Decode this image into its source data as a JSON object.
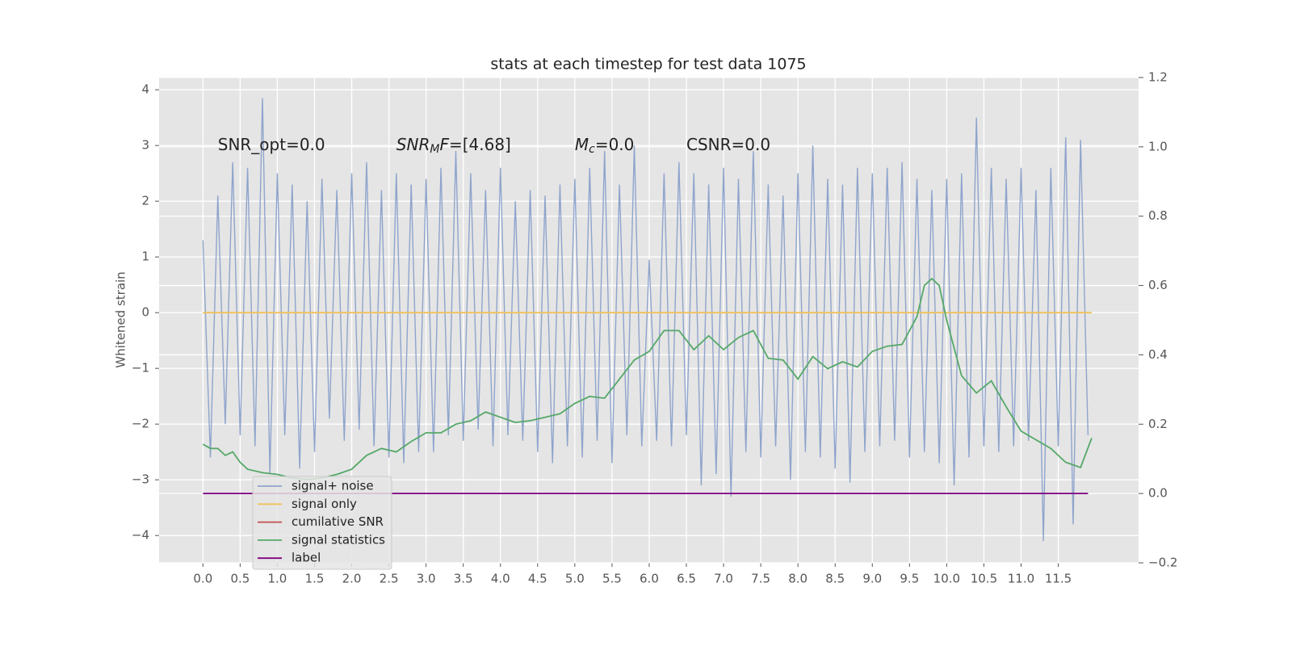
{
  "chart_data": {
    "type": "line",
    "title": "stats at each timestep for test data 1075",
    "y_label": "Whitened strain",
    "xlim": [
      -0.59,
      12.58
    ],
    "ylim": [
      -4.49,
      4.22
    ],
    "y2lim": [
      -0.2,
      1.2
    ],
    "grid": true,
    "legend": "lower left",
    "xticks": [
      {
        "value": 0,
        "label": "0.0"
      },
      {
        "value": 0.5,
        "label": "0.5"
      },
      {
        "value": 1,
        "label": "1.0"
      },
      {
        "value": 1.5,
        "label": "1.5"
      },
      {
        "value": 2,
        "label": "2.0"
      },
      {
        "value": 2.5,
        "label": "2.5"
      },
      {
        "value": 3,
        "label": "3.0"
      },
      {
        "value": 3.5,
        "label": "3.5"
      },
      {
        "value": 4,
        "label": "4.0"
      },
      {
        "value": 4.5,
        "label": "4.5"
      },
      {
        "value": 5,
        "label": "5.0"
      },
      {
        "value": 5.5,
        "label": "5.5"
      },
      {
        "value": 6,
        "label": "6.0"
      },
      {
        "value": 6.5,
        "label": "6.5"
      },
      {
        "value": 7,
        "label": "7.0"
      },
      {
        "value": 7.5,
        "label": "7.5"
      },
      {
        "value": 8,
        "label": "8.0"
      },
      {
        "value": 8.5,
        "label": "8.5"
      },
      {
        "value": 9,
        "label": "9.0"
      },
      {
        "value": 9.5,
        "label": "9.5"
      },
      {
        "value": 10,
        "label": "10.0"
      },
      {
        "value": 10.5,
        "label": "10.5"
      },
      {
        "value": 11,
        "label": "11.0"
      },
      {
        "value": 11.5,
        "label": "11.5"
      }
    ],
    "yticks": [
      {
        "value": -4,
        "label": "−4"
      },
      {
        "value": -3,
        "label": "−3"
      },
      {
        "value": -2,
        "label": "−2"
      },
      {
        "value": -1,
        "label": "−1"
      },
      0,
      1,
      2,
      3,
      4
    ],
    "y2ticks": [
      {
        "value": -0.2,
        "label": "−0.2"
      },
      {
        "value": 0,
        "label": "0.0"
      },
      0.2,
      0.4,
      0.6,
      0.8,
      {
        "value": 1,
        "label": "1.0"
      },
      1.2
    ],
    "annotations": [
      {
        "x": 0.2,
        "y": 3.0,
        "parts": [
          {
            "text": "SNR_opt=0.0",
            "style": "normal"
          }
        ]
      },
      {
        "x": 2.6,
        "y": 3.0,
        "parts": [
          {
            "text": "SNR",
            "style": "italic"
          },
          {
            "text": "M",
            "style": "italic-sub"
          },
          {
            "text": "F",
            "style": "italic"
          },
          {
            "text": "=[4.68]",
            "style": "normal"
          }
        ]
      },
      {
        "x": 5.0,
        "y": 3.0,
        "parts": [
          {
            "text": "M",
            "style": "italic"
          },
          {
            "text": "c",
            "style": "italic-sub"
          },
          {
            "text": "=0.0",
            "style": "normal"
          }
        ]
      },
      {
        "x": 6.5,
        "y": 3.0,
        "parts": [
          {
            "text": "CSNR=0.0",
            "style": "normal"
          }
        ]
      }
    ],
    "series": [
      {
        "name": "signal+ noise",
        "color": "#8fa4cc",
        "axis": "y",
        "x": [
          0,
          0.1,
          0.2,
          0.3,
          0.4,
          0.5,
          0.6,
          0.7,
          0.8,
          0.9,
          1,
          1.1,
          1.2,
          1.3,
          1.4,
          1.5,
          1.6,
          1.7,
          1.8,
          1.9,
          2,
          2.1,
          2.2,
          2.3,
          2.4,
          2.5,
          2.6,
          2.7,
          2.8,
          2.9,
          3,
          3.1,
          3.2,
          3.3,
          3.4,
          3.5,
          3.6,
          3.7,
          3.8,
          3.9,
          4,
          4.1,
          4.2,
          4.3,
          4.4,
          4.5,
          4.6,
          4.7,
          4.8,
          4.9,
          5,
          5.1,
          5.2,
          5.3,
          5.4,
          5.5,
          5.6,
          5.7,
          5.8,
          5.9,
          6,
          6.1,
          6.2,
          6.3,
          6.4,
          6.5,
          6.6,
          6.7,
          6.8,
          6.9,
          7,
          7.1,
          7.2,
          7.3,
          7.4,
          7.5,
          7.6,
          7.7,
          7.8,
          7.9,
          8,
          8.1,
          8.2,
          8.3,
          8.4,
          8.5,
          8.6,
          8.7,
          8.8,
          8.9,
          9,
          9.1,
          9.2,
          9.3,
          9.4,
          9.5,
          9.6,
          9.7,
          9.8,
          9.9,
          10,
          10.1,
          10.2,
          10.3,
          10.4,
          10.5,
          10.6,
          10.7,
          10.8,
          10.9,
          11,
          11.1,
          11.2,
          11.3,
          11.4,
          11.5,
          11.6,
          11.7,
          11.8,
          11.9
        ],
        "values": [
          1.3,
          -2.6,
          2.1,
          -2.0,
          2.7,
          -2.2,
          2.6,
          -2.4,
          3.85,
          -2.9,
          2.5,
          -2.2,
          2.3,
          -2.8,
          2.0,
          -2.5,
          2.4,
          -1.9,
          2.2,
          -2.3,
          2.5,
          -2.1,
          2.7,
          -2.4,
          2.2,
          -2.6,
          2.5,
          -2.7,
          2.3,
          -2.5,
          2.4,
          -2.5,
          2.6,
          -2.2,
          2.9,
          -2.3,
          2.5,
          -2.1,
          2.2,
          -2.4,
          2.6,
          -2.2,
          2.0,
          -2.3,
          2.2,
          -2.5,
          2.1,
          -2.7,
          2.3,
          -2.4,
          2.4,
          -2.6,
          2.6,
          -2.3,
          2.9,
          -2.7,
          2.3,
          -2.2,
          3.0,
          -2.4,
          0.95,
          -2.3,
          2.5,
          -2.4,
          2.7,
          -2.2,
          2.5,
          -3.1,
          2.3,
          -2.9,
          2.6,
          -3.3,
          2.4,
          -2.5,
          2.9,
          -2.6,
          2.3,
          -2.4,
          2.1,
          -3.0,
          2.5,
          -2.5,
          3.0,
          -2.6,
          2.4,
          -2.8,
          2.3,
          -3.05,
          2.6,
          -2.5,
          2.5,
          -2.4,
          2.6,
          -2.3,
          2.7,
          -2.6,
          2.4,
          -2.5,
          2.2,
          -2.7,
          2.4,
          -3.1,
          2.5,
          -2.6,
          3.5,
          -2.4,
          2.6,
          -2.5,
          2.4,
          -2.4,
          2.6,
          -2.3,
          2.2,
          -4.1,
          2.6,
          -2.4,
          3.15,
          -3.8,
          3.1,
          -2.2
        ]
      },
      {
        "name": "signal only",
        "color": "#f0c25a",
        "axis": "y",
        "x": [
          0,
          11.95
        ],
        "values": [
          0,
          0
        ]
      },
      {
        "name": "cumilative SNR",
        "color": "#c44e52",
        "axis": "y2"
      },
      {
        "name": "signal statistics",
        "color": "#55a868",
        "axis": "y2",
        "x": [
          0,
          0.1,
          0.2,
          0.3,
          0.4,
          0.5,
          0.6,
          0.8,
          1,
          1.2,
          1.4,
          1.6,
          1.8,
          2,
          2.2,
          2.4,
          2.6,
          2.8,
          3,
          3.2,
          3.4,
          3.6,
          3.8,
          4,
          4.2,
          4.4,
          4.6,
          4.8,
          5,
          5.2,
          5.4,
          5.6,
          5.8,
          6,
          6.2,
          6.4,
          6.6,
          6.8,
          7,
          7.2,
          7.4,
          7.6,
          7.8,
          8,
          8.2,
          8.4,
          8.6,
          8.8,
          9,
          9.2,
          9.4,
          9.6,
          9.7,
          9.8,
          9.9,
          10,
          10.2,
          10.4,
          10.6,
          10.8,
          11,
          11.2,
          11.4,
          11.6,
          11.8,
          11.95
        ],
        "values": [
          0.142,
          0.13,
          0.13,
          0.11,
          0.12,
          0.09,
          0.07,
          0.06,
          0.055,
          0.045,
          0.04,
          0.045,
          0.055,
          0.07,
          0.11,
          0.13,
          0.12,
          0.15,
          0.175,
          0.175,
          0.2,
          0.21,
          0.235,
          0.22,
          0.205,
          0.21,
          0.22,
          0.23,
          0.26,
          0.28,
          0.275,
          0.33,
          0.385,
          0.41,
          0.47,
          0.47,
          0.415,
          0.455,
          0.415,
          0.45,
          0.47,
          0.39,
          0.385,
          0.33,
          0.395,
          0.36,
          0.38,
          0.365,
          0.41,
          0.425,
          0.43,
          0.51,
          0.6,
          0.62,
          0.6,
          0.5,
          0.34,
          0.29,
          0.325,
          0.25,
          0.18,
          0.155,
          0.13,
          0.09,
          0.075,
          0.16
        ]
      },
      {
        "name": "label",
        "color": "#800080",
        "axis": "y2",
        "x": [
          0,
          11.9
        ],
        "values": [
          0,
          0
        ]
      }
    ]
  }
}
